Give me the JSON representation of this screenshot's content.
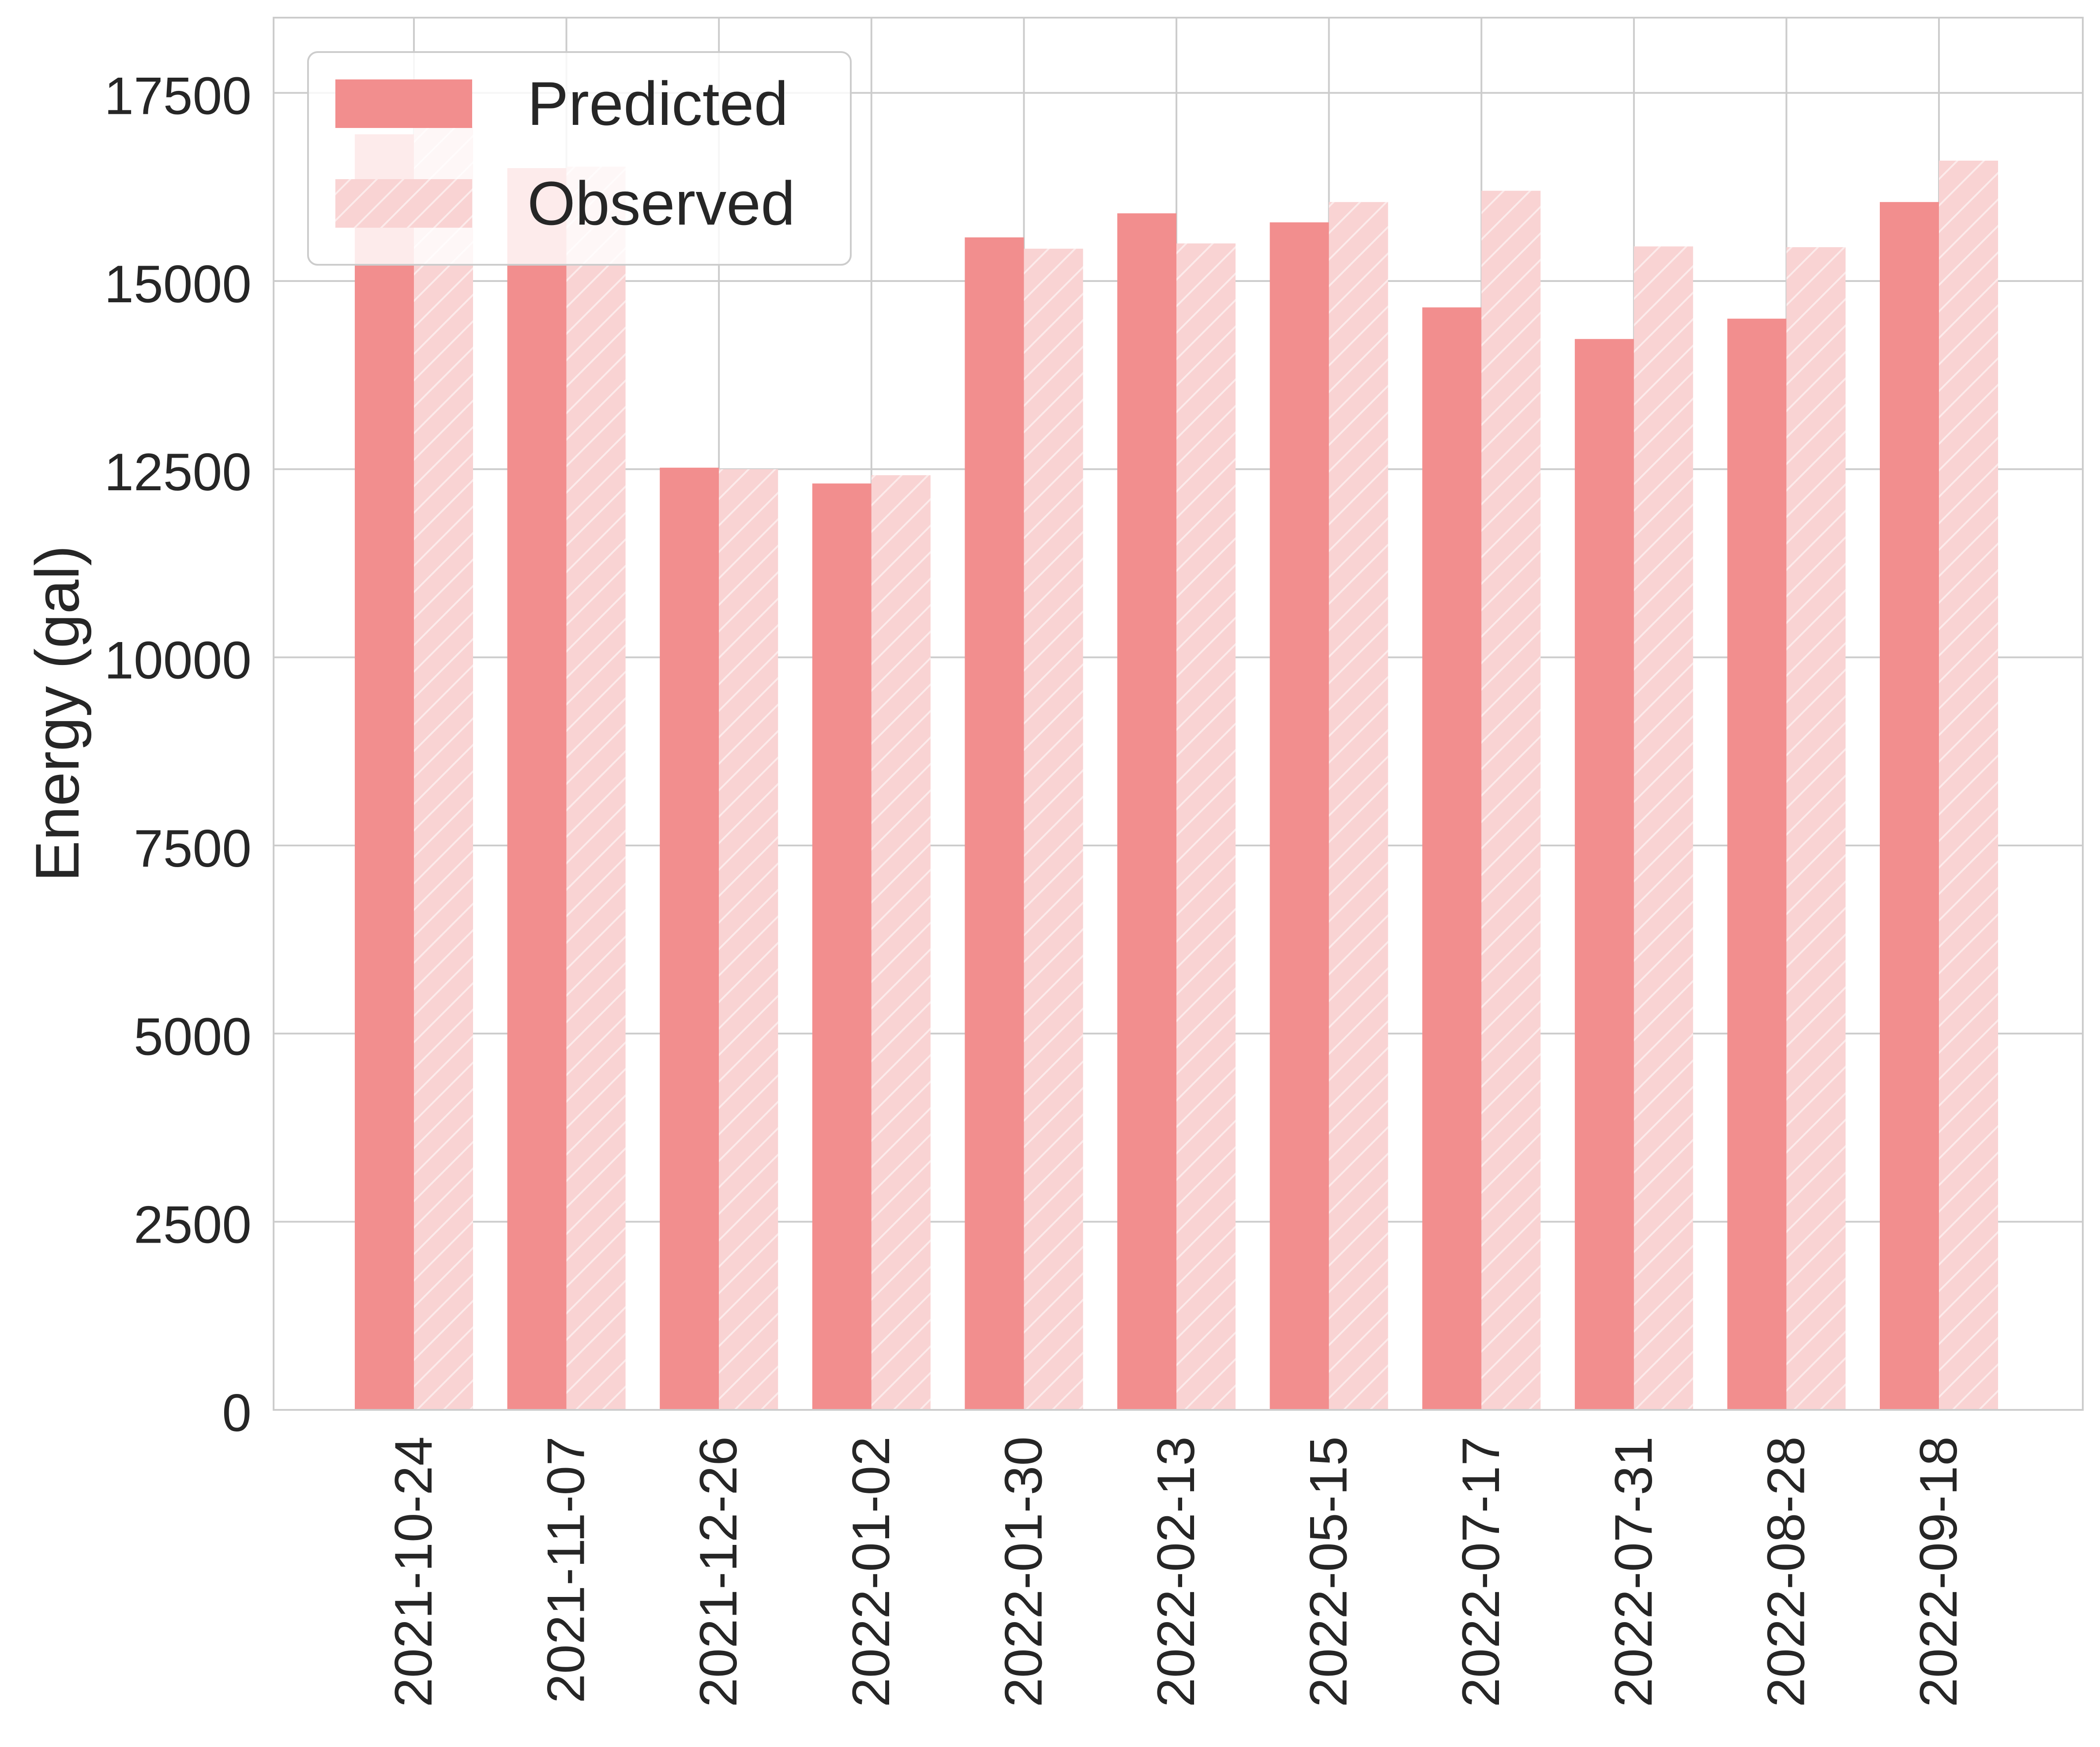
{
  "chart_data": {
    "type": "bar",
    "title": "",
    "xlabel": "",
    "ylabel": "Energy (gal)",
    "ylim": [
      0,
      18500
    ],
    "yticks": [
      0,
      2500,
      5000,
      7500,
      10000,
      12500,
      15000,
      17500
    ],
    "grid": true,
    "legend_position": "top-left",
    "categories": [
      "2021-10-24",
      "2021-11-07",
      "2021-12-26",
      "2022-01-02",
      "2022-01-30",
      "2022-02-13",
      "2022-05-15",
      "2022-07-17",
      "2022-07-31",
      "2022-08-28",
      "2022-09-18"
    ],
    "series": [
      {
        "name": "Predicted",
        "color": "#f28e8e",
        "hatch": false,
        "values": [
          16950,
          16500,
          12520,
          12310,
          15580,
          15900,
          15780,
          14650,
          14230,
          14500,
          16050
        ]
      },
      {
        "name": "Observed",
        "color": "#f9d3d3",
        "hatch": true,
        "values": [
          17050,
          16520,
          12500,
          12420,
          15430,
          15500,
          16050,
          16200,
          15460,
          15450,
          16600
        ]
      }
    ]
  }
}
